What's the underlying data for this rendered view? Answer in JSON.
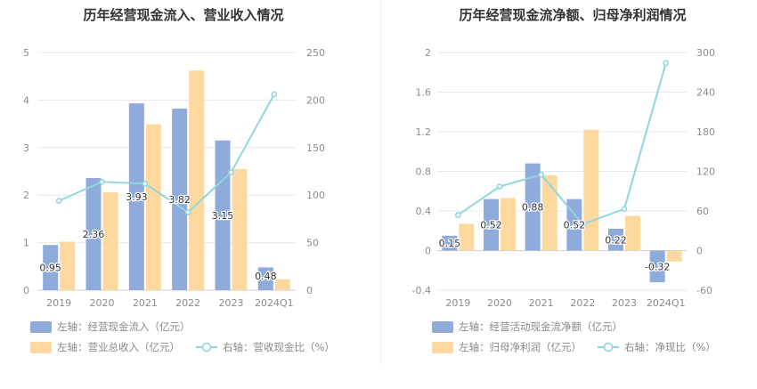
{
  "colors": {
    "bar_primary": "#8eabdb",
    "bar_secondary": "#fdd89f",
    "line": "#8fd7dc",
    "axis_text": "#8c8c8c",
    "grid": "#e8e8e8",
    "title": "#333333",
    "label_text": "#333333",
    "legend_text": "#888888"
  },
  "chart_data": [
    {
      "type": "bar",
      "title": "历年经营现金流入、营业收入情况",
      "categories": [
        "2019",
        "2020",
        "2021",
        "2022",
        "2023",
        "2024Q1"
      ],
      "left_axis": {
        "ylim": [
          0,
          5
        ],
        "ticks": [
          "0",
          "1",
          "2",
          "3",
          "4",
          "5"
        ]
      },
      "right_axis": {
        "ylim": [
          0,
          250
        ],
        "ticks": [
          "0",
          "50",
          "100",
          "150",
          "200",
          "250"
        ]
      },
      "series": [
        {
          "name": "左轴：经营现金流入（亿元）",
          "kind": "bar",
          "axis": "left",
          "color_key": "bar_primary",
          "values": [
            0.95,
            2.36,
            3.93,
            3.82,
            3.15,
            0.48
          ],
          "labels": [
            "0.95",
            "2.36",
            "3.93",
            "3.82",
            "3.15",
            "0.48"
          ]
        },
        {
          "name": "左轴：营业总收入（亿元）",
          "kind": "bar",
          "axis": "left",
          "color_key": "bar_secondary",
          "values": [
            1.02,
            2.06,
            3.49,
            4.62,
            2.55,
            0.23
          ]
        },
        {
          "name": "右轴：营收现金比（%）",
          "kind": "line",
          "axis": "right",
          "color_key": "line",
          "values": [
            94,
            114,
            112,
            82,
            124,
            206
          ]
        }
      ]
    },
    {
      "type": "bar",
      "title": "历年经营现金流净额、归母净利润情况",
      "categories": [
        "2019",
        "2020",
        "2021",
        "2022",
        "2023",
        "2024Q1"
      ],
      "left_axis": {
        "ylim": [
          -0.4,
          2
        ],
        "ticks": [
          "-0.4",
          "0",
          "0.4",
          "0.8",
          "1.2",
          "1.6",
          "2"
        ]
      },
      "right_axis": {
        "ylim": [
          -60,
          300
        ],
        "ticks": [
          "-60",
          "0",
          "60",
          "120",
          "180",
          "240",
          "300"
        ]
      },
      "series": [
        {
          "name": "左轴：经营活动现金流净额（亿元）",
          "kind": "bar",
          "axis": "left",
          "color_key": "bar_primary",
          "values": [
            0.15,
            0.52,
            0.88,
            0.52,
            0.22,
            -0.32
          ],
          "labels": [
            "0.15",
            "0.52",
            "0.88",
            "0.52",
            "0.22",
            "-0.32"
          ]
        },
        {
          "name": "左轴：归母净利润（亿元）",
          "kind": "bar",
          "axis": "left",
          "color_key": "bar_secondary",
          "values": [
            0.27,
            0.53,
            0.76,
            1.22,
            0.35,
            -0.11
          ]
        },
        {
          "name": "右轴：净现比（%）",
          "kind": "line",
          "axis": "right",
          "color_key": "line",
          "values": [
            54,
            97,
            115,
            40,
            63,
            284
          ]
        }
      ]
    }
  ]
}
